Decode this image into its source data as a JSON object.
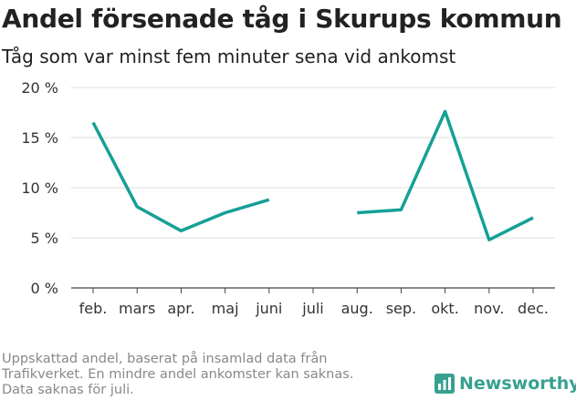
{
  "header": {
    "title": "Andel försenade tåg i Skurups kommun",
    "subtitle": "Tåg som var minst fem minuter sena vid ankomst"
  },
  "chart_data": {
    "type": "line",
    "title": "Andel försenade tåg i Skurups kommun",
    "subtitle": "Tåg som var minst fem minuter sena vid ankomst",
    "categories": [
      "feb.",
      "mars",
      "apr.",
      "maj",
      "juni",
      "juli",
      "aug.",
      "sep.",
      "okt.",
      "nov.",
      "dec."
    ],
    "series": [
      {
        "name": "Andel försenade",
        "values": [
          16.5,
          8.1,
          5.7,
          7.5,
          8.8,
          null,
          7.5,
          7.8,
          17.6,
          4.8,
          7.0
        ],
        "color": "#16a096"
      }
    ],
    "yticks": [
      0,
      5,
      10,
      15,
      20
    ],
    "ytick_labels": [
      "0 %",
      "5 %",
      "10 %",
      "15 %",
      "20 %"
    ],
    "ylim": [
      0,
      20
    ],
    "xlabel": "",
    "ylabel": "",
    "grid": true
  },
  "footnote": {
    "lines": [
      "Uppskattad andel, baserat på insamlad data från",
      "Trafikverket. En mindre andel ankomster kan saknas.",
      "Data saknas för juli."
    ]
  },
  "brand": {
    "name": "Newsworthy",
    "color": "#37a090",
    "icon": "newsworthy-logo-icon"
  }
}
